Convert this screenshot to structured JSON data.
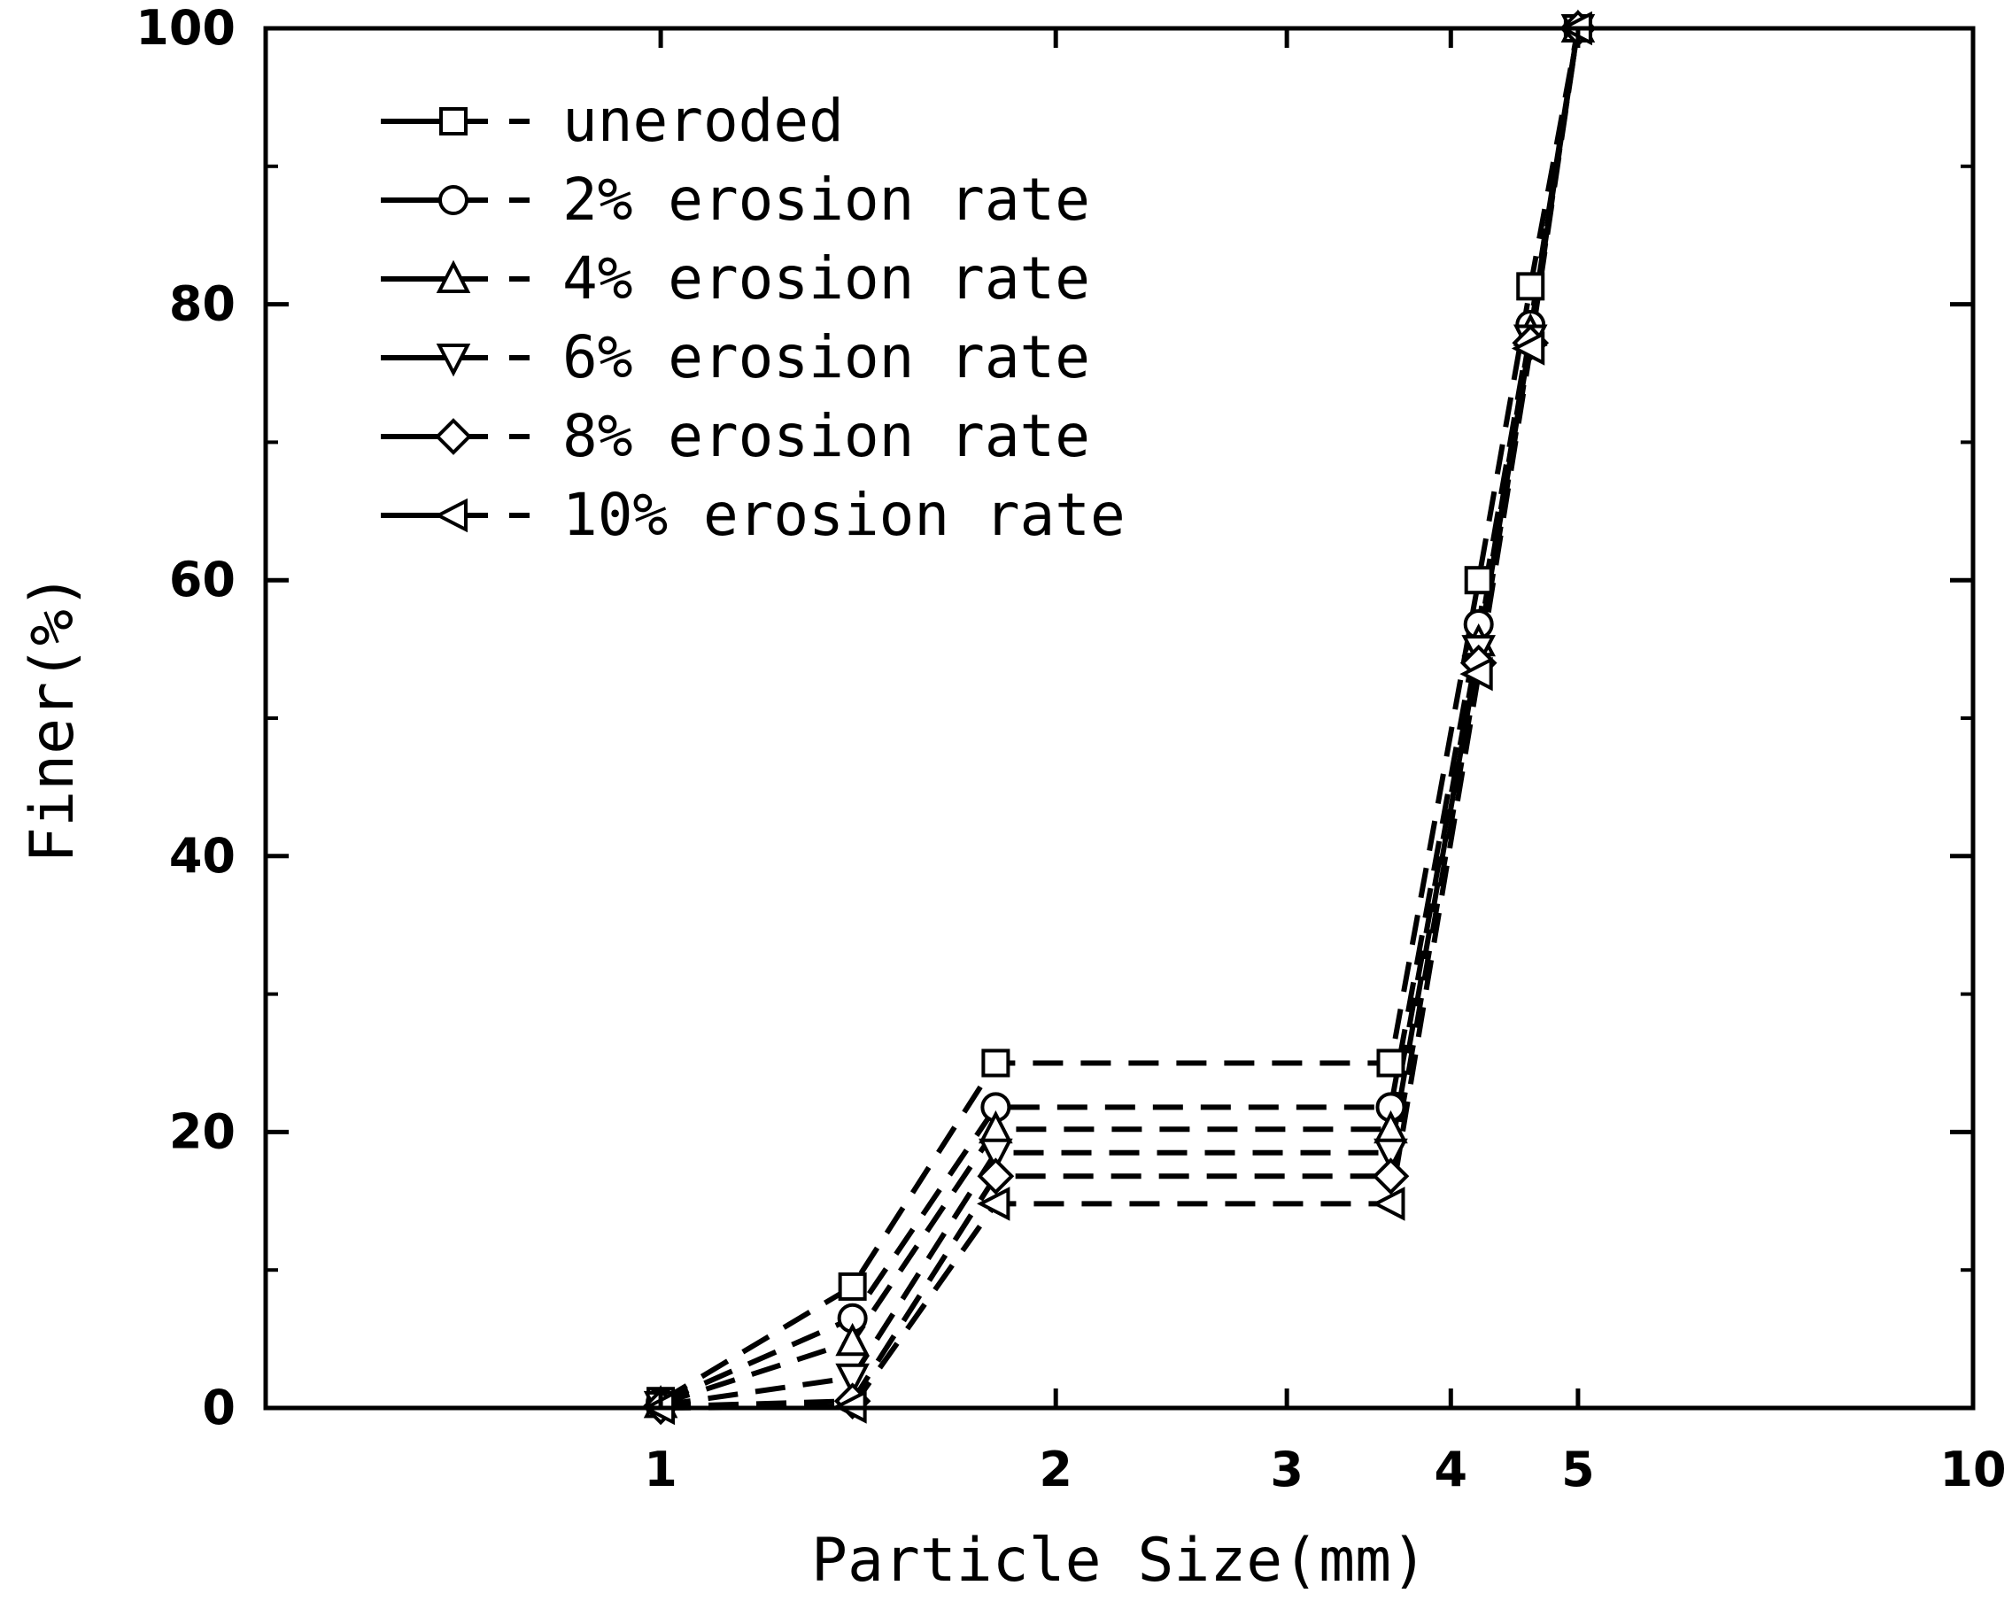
{
  "chart_data": {
    "type": "line",
    "title": "",
    "xlabel": "Particle Size(mm)",
    "ylabel": "Finer(%)",
    "xscale": "log",
    "xlim": [
      0.5,
      10
    ],
    "ylim": [
      0,
      100
    ],
    "xticks": [
      {
        "value": 1,
        "label": "1"
      },
      {
        "value": 2,
        "label": "2"
      },
      {
        "value": 3,
        "label": "3"
      },
      {
        "value": 4,
        "label": "4"
      },
      {
        "value": 5,
        "label": "5"
      },
      {
        "value": 10,
        "label": "10"
      }
    ],
    "yticks": [
      {
        "value": 0,
        "label": "0"
      },
      {
        "value": 20,
        "label": "20"
      },
      {
        "value": 40,
        "label": "40"
      },
      {
        "value": 60,
        "label": "60"
      },
      {
        "value": 80,
        "label": "80"
      },
      {
        "value": 100,
        "label": "100"
      }
    ],
    "legend_position": "top-left",
    "grid": false,
    "line_style": "dashed",
    "series": [
      {
        "name": "uneroded",
        "marker": "square",
        "x": [
          1.0,
          1.4,
          1.8,
          3.6,
          4.2,
          4.6,
          5.0
        ],
        "y": [
          0.5,
          8.8,
          25.0,
          25.0,
          60.0,
          81.3,
          100
        ]
      },
      {
        "name": "2% erosion rate",
        "marker": "circle",
        "x": [
          1.0,
          1.4,
          1.8,
          3.6,
          4.2,
          4.6,
          5.0
        ],
        "y": [
          0.4,
          6.5,
          21.8,
          21.8,
          56.8,
          78.5,
          100
        ]
      },
      {
        "name": "4% erosion rate",
        "marker": "triangle-up",
        "x": [
          1.0,
          1.4,
          1.8,
          3.6,
          4.2,
          4.6,
          5.0
        ],
        "y": [
          0.3,
          4.8,
          20.2,
          20.2,
          55.5,
          78.0,
          100
        ]
      },
      {
        "name": "6% erosion rate",
        "marker": "triangle-down",
        "x": [
          1.0,
          1.4,
          1.8,
          3.6,
          4.2,
          4.6,
          5.0
        ],
        "y": [
          0.2,
          2.2,
          18.5,
          18.5,
          55.0,
          77.5,
          100
        ]
      },
      {
        "name": "8% erosion rate",
        "marker": "diamond",
        "x": [
          1.0,
          1.4,
          1.8,
          3.6,
          4.2,
          4.6,
          5.0
        ],
        "y": [
          0.1,
          0.5,
          16.8,
          16.8,
          54.0,
          77.2,
          100
        ]
      },
      {
        "name": "10% erosion rate",
        "marker": "triangle-left",
        "x": [
          1.0,
          1.4,
          1.8,
          3.6,
          4.2,
          4.6,
          5.0
        ],
        "y": [
          0.0,
          0.1,
          14.8,
          14.8,
          53.2,
          76.8,
          100
        ]
      }
    ]
  }
}
